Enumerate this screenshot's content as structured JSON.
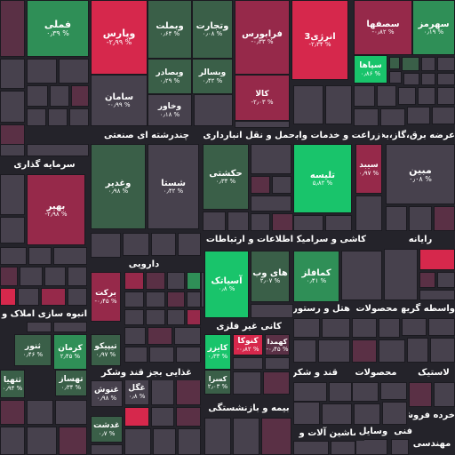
{
  "colors": {
    "up_strong": "#19c46b",
    "up_mid": "#2f8f57",
    "up_weak": "#3a5f48",
    "neutral": "#47414d",
    "down_weak": "#5a3045",
    "down_mid": "#96294a",
    "down_strong": "#d6284c"
  },
  "sectors": [
    "چندرشته ای صنعتی",
    "حمل و نقل انبارداری و",
    "زراعت و خدمات وابسته",
    "عرضه برق،گاز،بخار و",
    "سرمایه گذاری",
    "اطلاعات و ارتباطات",
    "کاشی و سرامیک",
    "رایانه",
    "دارویی",
    "کانی غیر فلزی",
    "هتل و رستوران",
    "محصولات",
    "واسطه گریهای",
    "انبوه سازی املاک و",
    "غذایی بجز قند وشکر",
    "قند و شکر",
    "محصولات",
    "لاستیک",
    "بیمه و بازنشستگی",
    "ماشین آلات و",
    "وسایل",
    "خرده فروشی",
    "فنی و",
    "مهندسی"
  ],
  "tiles": [
    {
      "symbol": "فملی",
      "change": "۰٫۳۹ %"
    },
    {
      "symbol": "وپارس",
      "change": "-۲٫۹۹ %"
    },
    {
      "symbol": "وبملت",
      "change": "۰٫۶۴ %"
    },
    {
      "symbol": "وتجارت",
      "change": "۰٫۰۸ %"
    },
    {
      "symbol": "فرابورس",
      "change": "-۰٫۳۳ %"
    },
    {
      "symbol": "انرژی3",
      "change": "-۲٫۳۴ %"
    },
    {
      "symbol": "سصفها",
      "change": "-۰٫۸۲ %"
    },
    {
      "symbol": "سهرمز",
      "change": "۰٫۱۹ %"
    },
    {
      "symbol": "سپاها",
      "change": "۰٫۸۶ %"
    },
    {
      "symbol": "وبصادر",
      "change": "۰٫۲۹ %"
    },
    {
      "symbol": "وبسالر",
      "change": "۰٫۴۲ %"
    },
    {
      "symbol": "سامان",
      "change": "-۰٫۹۹ %"
    },
    {
      "symbol": "وخاور",
      "change": "۰٫۱۸ %"
    },
    {
      "symbol": "کالا",
      "change": "-۲٫۰۳ %"
    },
    {
      "symbol": "حکشتی",
      "change": "۰٫۳۴ %"
    },
    {
      "symbol": "تلیسه",
      "change": "۵٫۸۲ %"
    },
    {
      "symbol": "سیبد",
      "change": "۰٫۹۷ %"
    },
    {
      "symbol": "مبین",
      "change": "۰٫۰۸ %"
    },
    {
      "symbol": "وغدیر",
      "change": "۰٫۹۸ %"
    },
    {
      "symbol": "شستا",
      "change": "۰٫۴۲ %"
    },
    {
      "symbol": "بهیر",
      "change": "-۲٫۹۸ %"
    },
    {
      "symbol": "های وب",
      "change": "۲٫۰۷ %"
    },
    {
      "symbol": "آسیاتک",
      "change": "۰٫۸ %"
    },
    {
      "symbol": "کمافلز",
      "change": "۰٫۴۱ %"
    },
    {
      "symbol": "برکت",
      "change": "-۰٫۴۵ %"
    },
    {
      "symbol": "کرمان",
      "change": "۲٫۴۵ %"
    },
    {
      "symbol": "ثنور",
      "change": "۰٫۴۶ %"
    },
    {
      "symbol": "کنوکا",
      "change": "-۰٫۸۲ %"
    },
    {
      "symbol": "کایزر",
      "change": "۰٫۳۳ %"
    },
    {
      "symbol": "کهمدا",
      "change": "-۰٫۴۵ %"
    },
    {
      "symbol": "تیپیکو",
      "change": "۰٫۹۷ %"
    },
    {
      "symbol": "ثتهیا",
      "change": "۰٫۹۴ %"
    },
    {
      "symbol": "تهساز",
      "change": "۰٫۳۴ %"
    },
    {
      "symbol": "کسرا",
      "change": "۲٫۰۳ %"
    },
    {
      "symbol": "غگل",
      "change": "۰٫۸ %"
    },
    {
      "symbol": "غنوش",
      "change": "۰٫۹۸ %"
    },
    {
      "symbol": "غدشت",
      "change": "۰٫۷ %"
    }
  ]
}
